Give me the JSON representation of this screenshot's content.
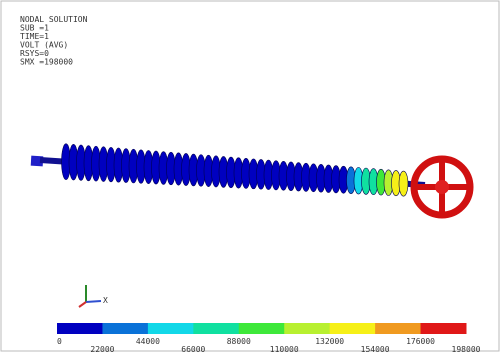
{
  "header": {
    "lines": [
      "NODAL SOLUTION",
      "SUB =1",
      "TIME=1",
      "VOLT      (AVG)",
      "RSYS=0",
      "SMX =198000"
    ]
  },
  "triad": {
    "x_label": "X"
  },
  "legend": {
    "labels": [
      "0",
      "22000",
      "44000",
      "66000",
      "88000",
      "110000",
      "132000",
      "154000",
      "176000",
      "198000"
    ],
    "colors": [
      "#0000c0",
      "#0a72d8",
      "#12d8e8",
      "#10e0a0",
      "#3ee83a",
      "#b8f030",
      "#f6f018",
      "#f09a20",
      "#e01818"
    ]
  }
}
